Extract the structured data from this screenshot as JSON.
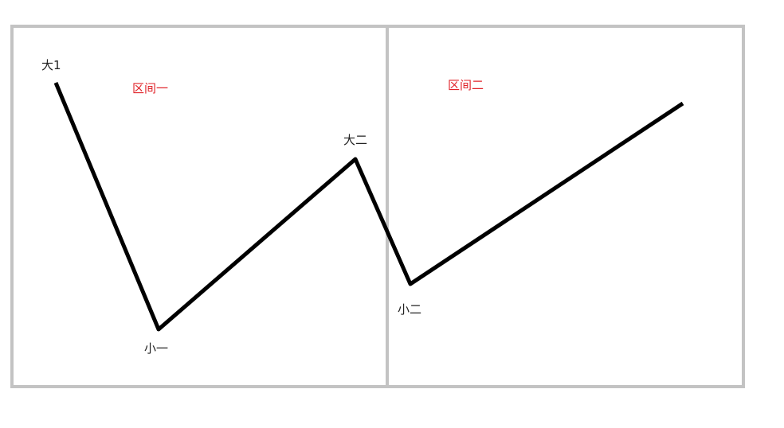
{
  "colors": {
    "frame": "#c3c3c3",
    "line": "#000000",
    "point_label": "#222222",
    "region_label": "#e0242a",
    "background": "#ffffff"
  },
  "regions": [
    {
      "label": "区间一"
    },
    {
      "label": "区间二"
    }
  ],
  "points": [
    {
      "label": "大1"
    },
    {
      "label": "小一"
    },
    {
      "label": "大二"
    },
    {
      "label": "小二"
    },
    {
      "label": ""
    }
  ]
}
